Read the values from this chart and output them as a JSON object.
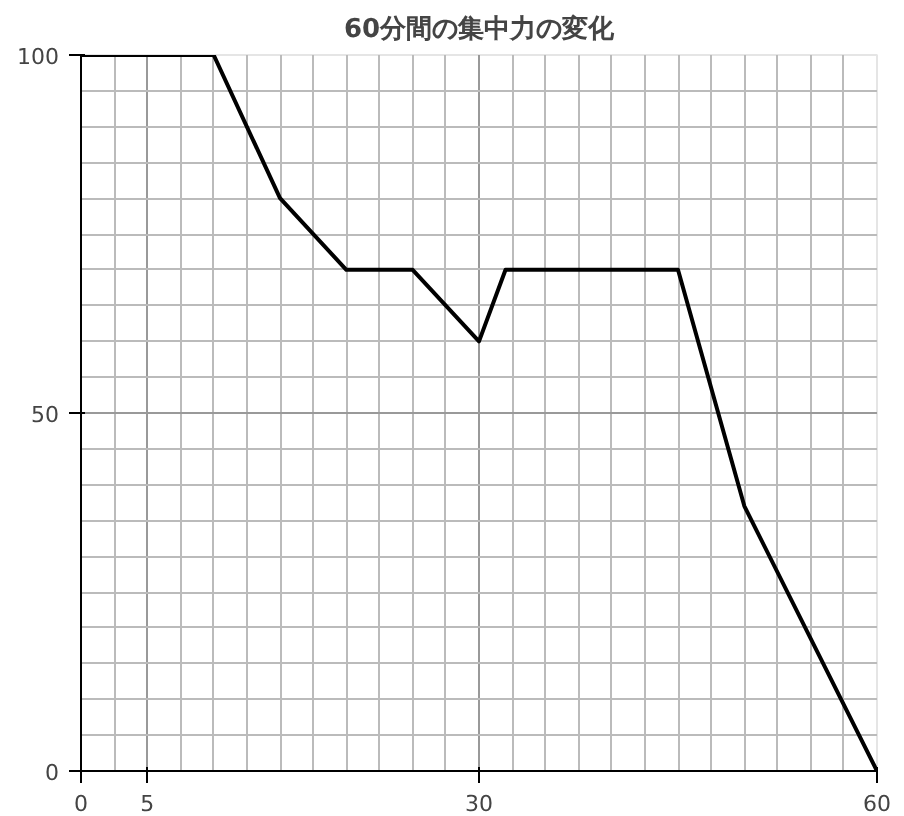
{
  "chart_data": {
    "type": "line",
    "title": "60分間の集中力の変化",
    "x": [
      0,
      10,
      15,
      20,
      25,
      30,
      32,
      45,
      50,
      60
    ],
    "values": [
      100,
      100,
      80,
      70,
      70,
      60,
      70,
      70,
      37,
      0
    ],
    "color": "#000000",
    "xlim": [
      0,
      60
    ],
    "xticks": [
      0,
      5,
      30,
      60
    ],
    "ylim": [
      0,
      100
    ],
    "yticks": [
      0,
      50,
      100
    ],
    "grid": true,
    "marker": "none",
    "line_style": "solid"
  }
}
